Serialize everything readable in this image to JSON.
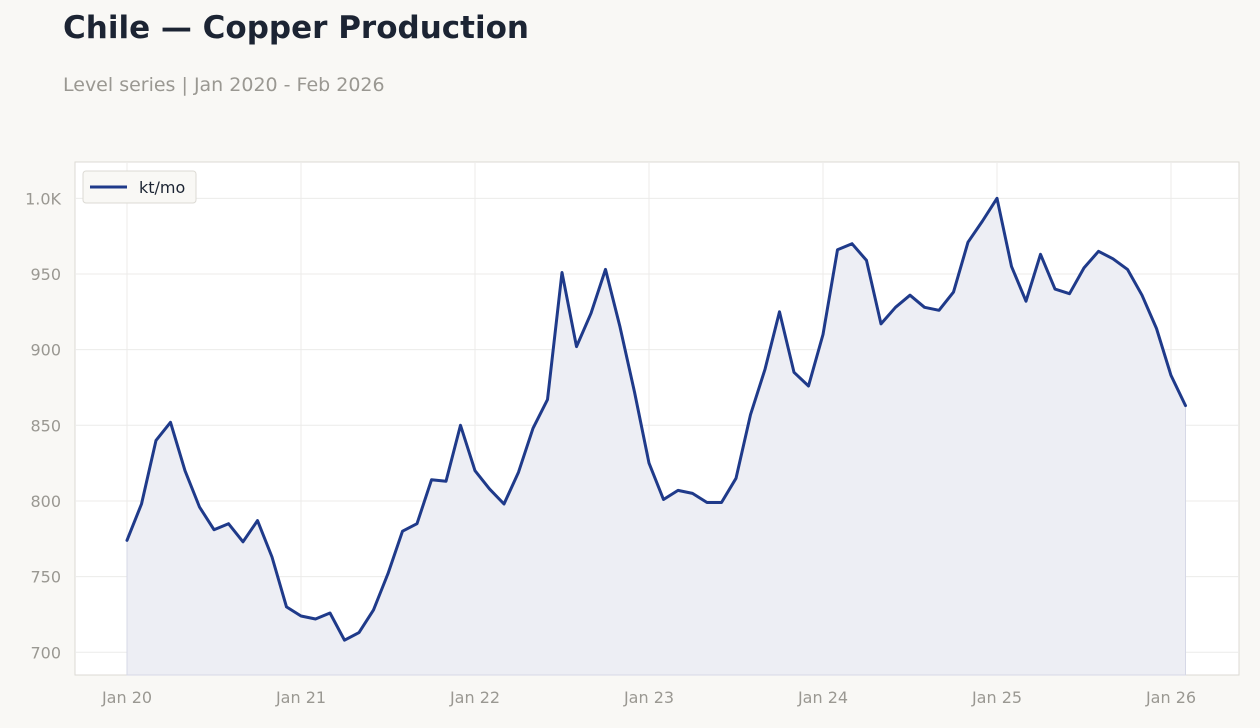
{
  "page": {
    "title": "Chile — Copper Production",
    "subtitle": "Level series | Jan 2020 - Feb 2026"
  },
  "colors": {
    "background": "#f9f8f5",
    "plot_background": "#ffffff",
    "line": "#1f3a8a",
    "area_fill": "#edeef4",
    "grid": "#ecebea",
    "axis_text": "#9a9892",
    "title": "#1c2433"
  },
  "chart_data": {
    "type": "area",
    "title": "Chile — Copper Production",
    "subtitle": "Level series | Jan 2020 - Feb 2026",
    "xlabel": "",
    "ylabel": "",
    "x_start": "2020-01",
    "x_end": "2026-02",
    "x_ticks": [
      "Jan 20",
      "Jan 21",
      "Jan 22",
      "Jan 23",
      "Jan 24",
      "Jan 25",
      "Jan 26"
    ],
    "y_ticks": [
      "700",
      "750",
      "800",
      "850",
      "900",
      "950",
      "1.0K"
    ],
    "y_tick_values": [
      700,
      750,
      800,
      850,
      900,
      950,
      1000
    ],
    "ylim": [
      685,
      1024
    ],
    "grid": true,
    "legend_position": "top-left",
    "series": [
      {
        "name": "kt/mo",
        "x": [
          "2020-01",
          "2020-02",
          "2020-03",
          "2020-04",
          "2020-05",
          "2020-06",
          "2020-07",
          "2020-08",
          "2020-09",
          "2020-10",
          "2020-11",
          "2020-12",
          "2021-01",
          "2021-02",
          "2021-03",
          "2021-04",
          "2021-05",
          "2021-06",
          "2021-07",
          "2021-08",
          "2021-09",
          "2021-10",
          "2021-11",
          "2021-12",
          "2022-01",
          "2022-02",
          "2022-03",
          "2022-04",
          "2022-05",
          "2022-06",
          "2022-07",
          "2022-08",
          "2022-09",
          "2022-10",
          "2022-11",
          "2022-12",
          "2023-01",
          "2023-02",
          "2023-03",
          "2023-04",
          "2023-05",
          "2023-06",
          "2023-07",
          "2023-08",
          "2023-09",
          "2023-10",
          "2023-11",
          "2023-12",
          "2024-01",
          "2024-02",
          "2024-03",
          "2024-04",
          "2024-05",
          "2024-06",
          "2024-07",
          "2024-08",
          "2024-09",
          "2024-10",
          "2024-11",
          "2024-12",
          "2025-01",
          "2025-02",
          "2025-03",
          "2025-04",
          "2025-05",
          "2025-06",
          "2025-07",
          "2025-08",
          "2025-09",
          "2025-10",
          "2025-11",
          "2025-12",
          "2026-01",
          "2026-02"
        ],
        "values": [
          774,
          798,
          840,
          852,
          820,
          796,
          781,
          785,
          773,
          787,
          763,
          730,
          724,
          722,
          726,
          708,
          713,
          728,
          752,
          780,
          785,
          814,
          813,
          850,
          820,
          808,
          798,
          819,
          848,
          867,
          951,
          902,
          924,
          953,
          915,
          872,
          825,
          801,
          807,
          805,
          799,
          799,
          815,
          857,
          887,
          925,
          885,
          876,
          910,
          966,
          970,
          959,
          917,
          928,
          936,
          928,
          926,
          938,
          971,
          985,
          1000,
          955,
          932,
          963,
          940,
          937,
          954,
          965,
          960,
          953,
          936,
          914,
          883,
          863
        ]
      }
    ]
  }
}
